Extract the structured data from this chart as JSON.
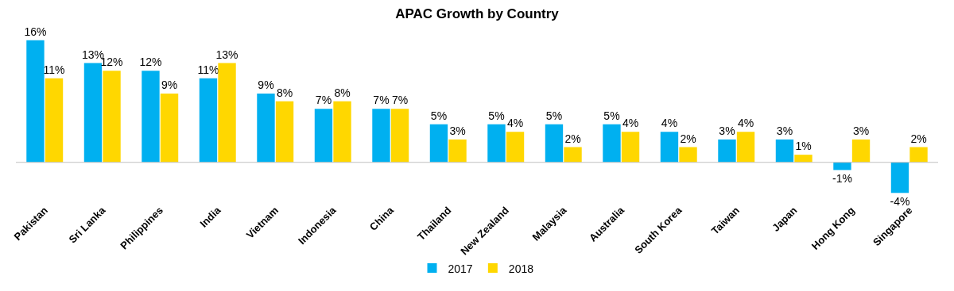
{
  "chart_data": {
    "type": "bar",
    "title": "APAC Growth by Country",
    "categories": [
      "Pakistan",
      "Sri Lanka",
      "Philippines",
      "India",
      "Vietnam",
      "Indonesia",
      "China",
      "Thailand",
      "New Zealand",
      "Malaysia",
      "Australia",
      "South Korea",
      "Taiwan",
      "Japan",
      "Hong Kong",
      "Singapore"
    ],
    "series": [
      {
        "name": "2017",
        "color": "#00b0f0",
        "values": [
          16,
          13,
          12,
          11,
          9,
          7,
          7,
          5,
          5,
          5,
          5,
          4,
          3,
          3,
          -1,
          -4
        ],
        "value_labels": [
          "16%",
          "13%",
          "12%",
          "11%",
          "9%",
          "7%",
          "7%",
          "5%",
          "5%",
          "5%",
          "5%",
          "4%",
          "3%",
          "3%",
          "-1%",
          "-4%"
        ]
      },
      {
        "name": "2018",
        "color": "#ffd700",
        "values": [
          11,
          12,
          9,
          13,
          8,
          8,
          7,
          3,
          4,
          2,
          4,
          2,
          4,
          1,
          3,
          2
        ],
        "value_labels": [
          "11%",
          "12%",
          "9%",
          "13%",
          "8%",
          "8%",
          "7%",
          "3%",
          "4%",
          "2%",
          "4%",
          "2%",
          "4%",
          "1%",
          "3%",
          "2%"
        ]
      }
    ],
    "legend": "bottom"
  }
}
